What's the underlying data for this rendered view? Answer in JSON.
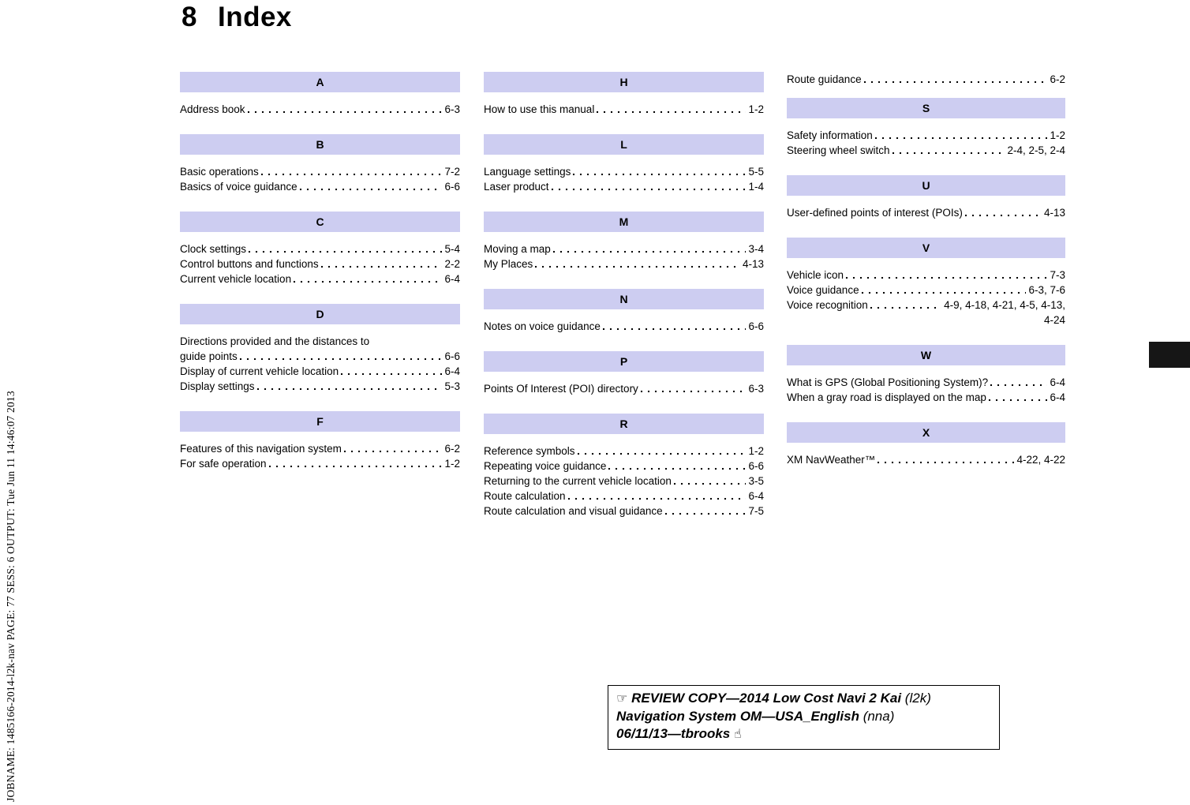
{
  "page": {
    "title_number": "8",
    "title_word": "Index"
  },
  "jobline_text": "JOBNAME: 1485166-2014-l2k-nav PAGE: 77 SESS: 6 OUTPUT: Tue Jun 11 14:46:07 2013",
  "colors": {
    "section_header_bg": "#cdcdf1",
    "thumb_tab": "#161616"
  },
  "columns": [
    {
      "sections": [
        {
          "letter": "A",
          "entries": [
            {
              "label": "Address book",
              "page": "6-3"
            }
          ]
        },
        {
          "letter": "B",
          "entries": [
            {
              "label": "Basic operations",
              "page": "7-2"
            },
            {
              "label": "Basics of voice guidance",
              "page": "6-6"
            }
          ]
        },
        {
          "letter": "C",
          "entries": [
            {
              "label": "Clock settings",
              "page": "5-4"
            },
            {
              "label": "Control buttons and functions",
              "page": "2-2"
            },
            {
              "label": "Current vehicle location",
              "page": "6-4"
            }
          ]
        },
        {
          "letter": "D",
          "entries": [
            {
              "pre": "Directions provided and the distances to",
              "label": "guide points",
              "page": "6-6"
            },
            {
              "label": "Display of current vehicle location",
              "page": "6-4"
            },
            {
              "label": "Display settings",
              "page": "5-3"
            }
          ]
        },
        {
          "letter": "F",
          "entries": [
            {
              "label": "Features of this navigation system",
              "page": "6-2"
            },
            {
              "label": "For safe operation",
              "page": "1-2"
            }
          ]
        }
      ]
    },
    {
      "sections": [
        {
          "letter": "H",
          "entries": [
            {
              "label": "How to use this manual",
              "page": "1-2"
            }
          ]
        },
        {
          "letter": "L",
          "entries": [
            {
              "label": "Language settings",
              "page": "5-5"
            },
            {
              "label": "Laser product",
              "page": "1-4"
            }
          ]
        },
        {
          "letter": "M",
          "entries": [
            {
              "label": "Moving a map",
              "page": "3-4"
            },
            {
              "label": "My Places",
              "page": "4-13"
            }
          ]
        },
        {
          "letter": "N",
          "entries": [
            {
              "label": "Notes on voice guidance",
              "page": "6-6"
            }
          ]
        },
        {
          "letter": "P",
          "entries": [
            {
              "label": "Points Of Interest (POI) directory",
              "page": "6-3"
            }
          ]
        },
        {
          "letter": "R",
          "entries": [
            {
              "label": "Reference symbols",
              "page": "1-2"
            },
            {
              "label": "Repeating voice guidance",
              "page": "6-6"
            },
            {
              "label": "Returning to the current vehicle location",
              "page": "3-5"
            },
            {
              "label": "Route calculation",
              "page": "6-4"
            },
            {
              "label": "Route calculation and visual guidance",
              "page": "7-5"
            }
          ]
        }
      ]
    },
    {
      "lead_entries": [
        {
          "label": "Route guidance",
          "page": "6-2"
        }
      ],
      "sections": [
        {
          "letter": "S",
          "entries": [
            {
              "label": "Safety information",
              "page": "1-2"
            },
            {
              "label": "Steering wheel switch",
              "page": "2-4, 2-5, 2-4"
            }
          ]
        },
        {
          "letter": "U",
          "entries": [
            {
              "label": "User-defined points of interest (POIs)",
              "page": "4-13"
            }
          ]
        },
        {
          "letter": "V",
          "entries": [
            {
              "label": "Vehicle icon",
              "page": "7-3"
            },
            {
              "label": "Voice guidance",
              "page": "6-3, 7-6"
            },
            {
              "label": "Voice recognition",
              "page": "4-9, 4-18, 4-21, 4-5, 4-13,",
              "cont": "4-24"
            }
          ]
        },
        {
          "letter": "W",
          "entries": [
            {
              "label": "What is GPS (Global Positioning System)?",
              "page": "6-4"
            },
            {
              "label": "When a gray road is displayed on the map",
              "page": "6-4"
            }
          ]
        },
        {
          "letter": "X",
          "entries": [
            {
              "label": "XM NavWeather™",
              "page": "4-22, 4-22"
            }
          ]
        }
      ]
    }
  ],
  "review_box": {
    "hand_icon": "☞",
    "line1_bold": "REVIEW COPY—2014 Low Cost Navi 2 Kai",
    "line1_normal": "(l2k)",
    "line2_bold": "Navigation System OM—USA_English",
    "line2_normal": "(nna)",
    "line3_bold": "06/11/13—tbrooks",
    "end_icon": "☝"
  }
}
